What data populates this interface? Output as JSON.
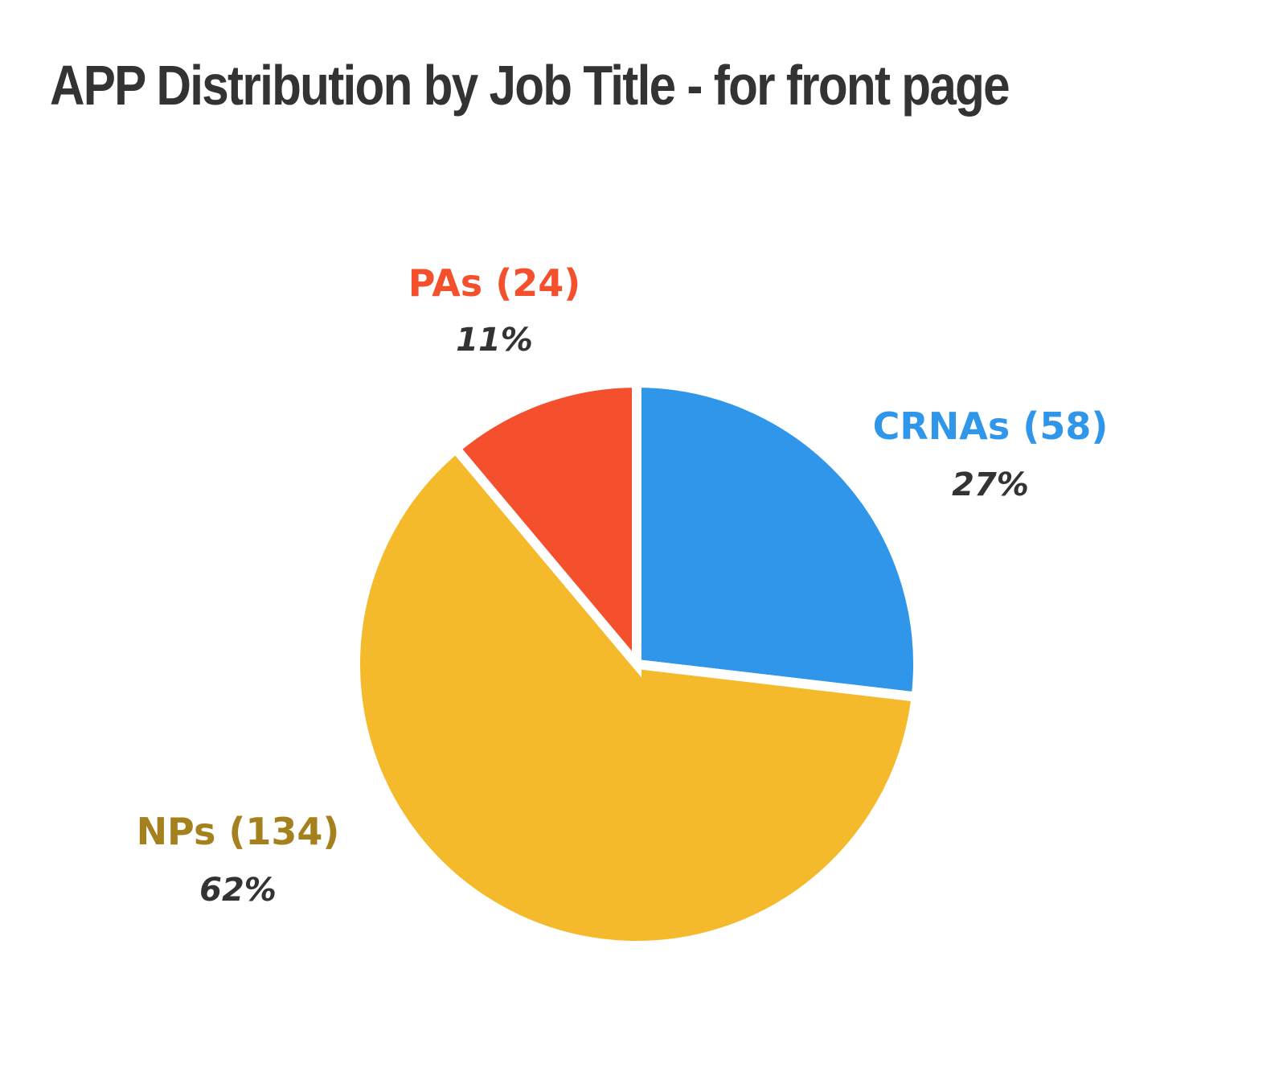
{
  "chart_data": {
    "type": "pie",
    "title": "APP Distribution by Job Title - for front page",
    "slices": [
      {
        "name": "CRNAs",
        "value": 58,
        "label": "CRNAs (58)",
        "percent_label": "27%",
        "color": "#3096E9"
      },
      {
        "name": "NPs",
        "value": 134,
        "label": "NPs (134)",
        "percent_label": "62%",
        "color": "#F5BA2C",
        "label_color": "#A5801E"
      },
      {
        "name": "PAs",
        "value": 24,
        "label": "PAs (24)",
        "percent_label": "11%",
        "color": "#F5502D"
      }
    ],
    "start_angle_deg": 0,
    "direction": "clockwise",
    "legend": "none",
    "slice_separator_color": "#FFFFFF"
  }
}
